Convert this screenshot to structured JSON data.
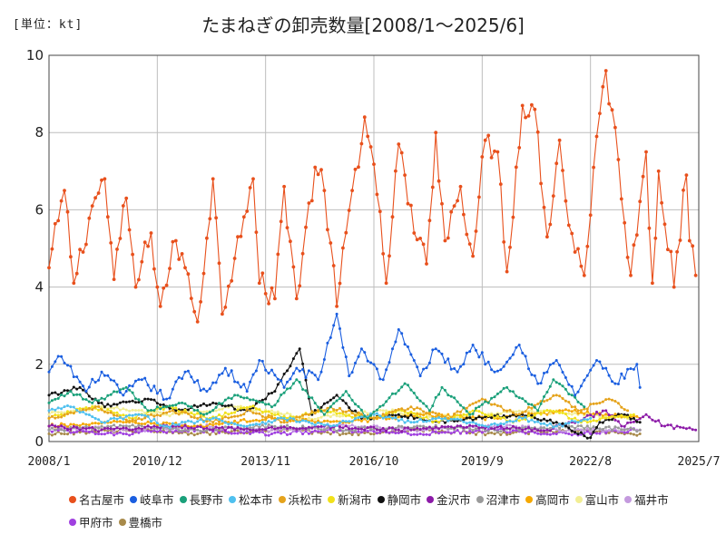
{
  "unit_label": "[単位：kt]",
  "chart_data": {
    "type": "line",
    "title": "たまねぎの卸売数量[2008/1～2025/6]",
    "xlabel": "",
    "ylabel": "",
    "ylim": [
      0,
      10
    ],
    "yticks": [
      0,
      2,
      4,
      6,
      8,
      10
    ],
    "x_start": "2008/1",
    "x_end": "2025/7",
    "xtick_labels": [
      "2008/1",
      "2010/12",
      "2013/11",
      "2016/10",
      "2019/9",
      "2022/8",
      "2025/7"
    ],
    "grid": true,
    "legend_position": "bottom",
    "series": [
      {
        "name": "名古屋市",
        "color": "#e8501c",
        "end": "2025/6",
        "points": [
          [
            "2008/1",
            4.5
          ],
          [
            "2008/6",
            6.5
          ],
          [
            "2008/9",
            4.1
          ],
          [
            "2009/3",
            6.1
          ],
          [
            "2009/7",
            6.8
          ],
          [
            "2009/10",
            4.2
          ],
          [
            "2010/2",
            6.3
          ],
          [
            "2010/5",
            4.0
          ],
          [
            "2010/10",
            5.4
          ],
          [
            "2011/1",
            3.5
          ],
          [
            "2011/6",
            5.2
          ],
          [
            "2011/9",
            4.5
          ],
          [
            "2012/1",
            3.1
          ],
          [
            "2012/6",
            6.8
          ],
          [
            "2012/9",
            3.3
          ],
          [
            "2013/2",
            5.3
          ],
          [
            "2013/7",
            6.8
          ],
          [
            "2013/9",
            4.1
          ],
          [
            "2014/2",
            3.7
          ],
          [
            "2014/5",
            6.6
          ],
          [
            "2014/9",
            3.7
          ],
          [
            "2015/3",
            7.1
          ],
          [
            "2015/6",
            6.5
          ],
          [
            "2015/10",
            3.5
          ],
          [
            "2016/3",
            6.5
          ],
          [
            "2016/7",
            8.4
          ],
          [
            "2016/11",
            6.4
          ],
          [
            "2017/2",
            4.1
          ],
          [
            "2017/6",
            7.7
          ],
          [
            "2017/11",
            5.4
          ],
          [
            "2018/3",
            4.6
          ],
          [
            "2018/6",
            8.0
          ],
          [
            "2018/9",
            5.2
          ],
          [
            "2019/2",
            6.6
          ],
          [
            "2019/6",
            4.8
          ],
          [
            "2019/10",
            7.8
          ],
          [
            "2020/2",
            7.5
          ],
          [
            "2020/5",
            4.4
          ],
          [
            "2020/10",
            8.7
          ],
          [
            "2021/2",
            8.6
          ],
          [
            "2021/6",
            5.3
          ],
          [
            "2021/10",
            7.8
          ],
          [
            "2022/1",
            5.6
          ],
          [
            "2022/6",
            4.3
          ],
          [
            "2022/10",
            7.9
          ],
          [
            "2023/1",
            9.6
          ],
          [
            "2023/5",
            7.3
          ],
          [
            "2023/9",
            4.3
          ],
          [
            "2024/2",
            7.5
          ],
          [
            "2024/4",
            4.1
          ],
          [
            "2024/6",
            7.0
          ],
          [
            "2024/11",
            4.0
          ],
          [
            "2025/3",
            6.9
          ],
          [
            "2025/4",
            5.2
          ],
          [
            "2025/6",
            4.3
          ]
        ]
      },
      {
        "name": "岐阜市",
        "color": "#1a5ee0",
        "end": "2023/12",
        "points": [
          [
            "2008/1",
            1.8
          ],
          [
            "2008/5",
            2.2
          ],
          [
            "2009/1",
            1.3
          ],
          [
            "2009/6",
            1.8
          ],
          [
            "2010/1",
            1.2
          ],
          [
            "2010/7",
            1.6
          ],
          [
            "2011/3",
            1.1
          ],
          [
            "2011/9",
            1.8
          ],
          [
            "2012/4",
            1.3
          ],
          [
            "2012/10",
            1.9
          ],
          [
            "2013/5",
            1.3
          ],
          [
            "2013/9",
            2.1
          ],
          [
            "2014/5",
            1.4
          ],
          [
            "2014/9",
            1.9
          ],
          [
            "2015/4",
            1.6
          ],
          [
            "2015/10",
            3.3
          ],
          [
            "2016/2",
            1.7
          ],
          [
            "2016/6",
            2.4
          ],
          [
            "2017/1",
            1.6
          ],
          [
            "2017/6",
            2.9
          ],
          [
            "2018/1",
            1.7
          ],
          [
            "2018/6",
            2.4
          ],
          [
            "2019/1",
            1.8
          ],
          [
            "2019/6",
            2.5
          ],
          [
            "2020/1",
            1.8
          ],
          [
            "2020/9",
            2.5
          ],
          [
            "2021/3",
            1.5
          ],
          [
            "2021/9",
            2.1
          ],
          [
            "2022/3",
            1.2
          ],
          [
            "2022/10",
            2.1
          ],
          [
            "2023/4",
            1.5
          ],
          [
            "2023/11",
            2.0
          ],
          [
            "2023/12",
            1.4
          ]
        ]
      },
      {
        "name": "長野市",
        "color": "#1aa07a",
        "end": "2022/6",
        "points": [
          [
            "2008/1",
            1.0
          ],
          [
            "2008/8",
            1.3
          ],
          [
            "2009/3",
            1.0
          ],
          [
            "2010/2",
            1.4
          ],
          [
            "2010/9",
            0.8
          ],
          [
            "2011/8",
            1.0
          ],
          [
            "2012/3",
            0.7
          ],
          [
            "2013/1",
            1.2
          ],
          [
            "2014/1",
            0.9
          ],
          [
            "2014/9",
            1.6
          ],
          [
            "2015/6",
            0.7
          ],
          [
            "2016/1",
            1.3
          ],
          [
            "2016/8",
            0.6
          ],
          [
            "2017/8",
            1.5
          ],
          [
            "2018/4",
            0.8
          ],
          [
            "2018/8",
            1.4
          ],
          [
            "2019/5",
            0.7
          ],
          [
            "2020/5",
            1.4
          ],
          [
            "2021/3",
            0.8
          ],
          [
            "2021/8",
            1.6
          ],
          [
            "2022/6",
            0.9
          ]
        ]
      },
      {
        "name": "松本市",
        "color": "#4fc0ef",
        "end": "2022/8",
        "points": [
          [
            "2008/1",
            0.8
          ],
          [
            "2008/8",
            0.9
          ],
          [
            "2009/6",
            0.5
          ],
          [
            "2010/6",
            0.7
          ],
          [
            "2011/3",
            0.4
          ],
          [
            "2012/6",
            0.6
          ],
          [
            "2013/4",
            0.4
          ],
          [
            "2014/5",
            0.6
          ],
          [
            "2015/8",
            0.4
          ],
          [
            "2016/10",
            0.7
          ],
          [
            "2017/10",
            0.5
          ],
          [
            "2018/9",
            0.6
          ],
          [
            "2019/10",
            0.4
          ],
          [
            "2020/10",
            0.6
          ],
          [
            "2021/9",
            0.4
          ],
          [
            "2022/8",
            0.6
          ]
        ]
      },
      {
        "name": "浜松市",
        "color": "#e5a31c",
        "end": "2023/8",
        "points": [
          [
            "2008/1",
            0.6
          ],
          [
            "2009/4",
            0.9
          ],
          [
            "2010/3",
            0.5
          ],
          [
            "2011/5",
            0.8
          ],
          [
            "2012/6",
            0.5
          ],
          [
            "2013/6",
            0.8
          ],
          [
            "2014/5",
            0.5
          ],
          [
            "2015/8",
            0.9
          ],
          [
            "2016/10",
            0.6
          ],
          [
            "2017/10",
            0.9
          ],
          [
            "2018/10",
            0.6
          ],
          [
            "2019/9",
            1.1
          ],
          [
            "2020/8",
            0.7
          ],
          [
            "2021/9",
            1.2
          ],
          [
            "2022/4",
            0.8
          ],
          [
            "2023/2",
            1.1
          ],
          [
            "2023/8",
            0.8
          ]
        ]
      },
      {
        "name": "新潟市",
        "color": "#f1e11a",
        "end": "2023/10",
        "points": [
          [
            "2008/1",
            0.6
          ],
          [
            "2009/3",
            0.9
          ],
          [
            "2010/4",
            0.6
          ],
          [
            "2011/3",
            0.9
          ],
          [
            "2012/5",
            0.6
          ],
          [
            "2013/6",
            0.9
          ],
          [
            "2014/6",
            0.6
          ],
          [
            "2015/6",
            0.8
          ],
          [
            "2016/8",
            0.6
          ],
          [
            "2017/7",
            0.8
          ],
          [
            "2018/7",
            0.5
          ],
          [
            "2019/7",
            0.8
          ],
          [
            "2020/7",
            0.5
          ],
          [
            "2021/7",
            0.8
          ],
          [
            "2022/7",
            0.5
          ],
          [
            "2023/10",
            0.7
          ]
        ]
      },
      {
        "name": "静岡市",
        "color": "#111111",
        "end": "2023/12",
        "points": [
          [
            "2008/1",
            1.2
          ],
          [
            "2008/11",
            1.4
          ],
          [
            "2009/7",
            0.9
          ],
          [
            "2010/9",
            1.1
          ],
          [
            "2011/6",
            0.8
          ],
          [
            "2012/6",
            1.0
          ],
          [
            "2013/5",
            0.8
          ],
          [
            "2014/2",
            1.3
          ],
          [
            "2014/10",
            2.4
          ],
          [
            "2015/2",
            0.7
          ],
          [
            "2015/10",
            1.2
          ],
          [
            "2016/6",
            0.6
          ],
          [
            "2017/6",
            0.7
          ],
          [
            "2018/7",
            0.5
          ],
          [
            "2019/7",
            0.6
          ],
          [
            "2020/10",
            0.7
          ],
          [
            "2021/9",
            0.5
          ],
          [
            "2022/8",
            0.1
          ],
          [
            "2022/11",
            0.5
          ],
          [
            "2023/6",
            0.7
          ],
          [
            "2023/12",
            0.5
          ]
        ]
      },
      {
        "name": "金沢市",
        "color": "#8c1aa8",
        "end": "2025/6",
        "points": [
          [
            "2008/1",
            0.4
          ],
          [
            "2009/6",
            0.3
          ],
          [
            "2011/6",
            0.4
          ],
          [
            "2013/6",
            0.3
          ],
          [
            "2015/6",
            0.4
          ],
          [
            "2017/6",
            0.3
          ],
          [
            "2019/6",
            0.4
          ],
          [
            "2021/6",
            0.3
          ],
          [
            "2022/6",
            0.6
          ],
          [
            "2023/1",
            0.8
          ],
          [
            "2023/6",
            0.4
          ],
          [
            "2024/2",
            0.7
          ],
          [
            "2024/8",
            0.4
          ],
          [
            "2025/6",
            0.3
          ]
        ]
      },
      {
        "name": "沼津市",
        "color": "#9a9a9a",
        "end": "2023/12",
        "points": [
          [
            "2008/1",
            0.3
          ],
          [
            "2010/1",
            0.4
          ],
          [
            "2012/1",
            0.3
          ],
          [
            "2014/1",
            0.4
          ],
          [
            "2016/1",
            0.3
          ],
          [
            "2018/1",
            0.4
          ],
          [
            "2020/1",
            0.3
          ],
          [
            "2022/1",
            0.4
          ],
          [
            "2023/12",
            0.3
          ]
        ]
      },
      {
        "name": "高岡市",
        "color": "#f5a800",
        "end": "2023/12",
        "points": [
          [
            "2008/1",
            0.4
          ],
          [
            "2010/1",
            0.5
          ],
          [
            "2012/1",
            0.4
          ],
          [
            "2014/1",
            0.6
          ],
          [
            "2016/1",
            0.5
          ],
          [
            "2018/1",
            0.7
          ],
          [
            "2020/1",
            0.6
          ],
          [
            "2022/1",
            0.8
          ],
          [
            "2023/12",
            0.6
          ]
        ]
      },
      {
        "name": "富山市",
        "color": "#f2ee94",
        "end": "2023/10",
        "points": [
          [
            "2008/1",
            0.7
          ],
          [
            "2009/5",
            0.9
          ],
          [
            "2011/3",
            0.7
          ],
          [
            "2013/1",
            0.9
          ],
          [
            "2015/1",
            0.6
          ],
          [
            "2017/1",
            0.8
          ],
          [
            "2019/1",
            0.6
          ],
          [
            "2021/1",
            0.8
          ],
          [
            "2023/10",
            0.6
          ]
        ]
      },
      {
        "name": "福井市",
        "color": "#c49ade",
        "end": "2023/12",
        "points": [
          [
            "2008/1",
            0.4
          ],
          [
            "2010/1",
            0.3
          ],
          [
            "2012/1",
            0.4
          ],
          [
            "2014/1",
            0.3
          ],
          [
            "2016/1",
            0.4
          ],
          [
            "2018/1",
            0.3
          ],
          [
            "2020/1",
            0.4
          ],
          [
            "2022/1",
            0.3
          ],
          [
            "2023/12",
            0.3
          ]
        ]
      },
      {
        "name": "甲府市",
        "color": "#a040e0",
        "end": "2023/12",
        "points": [
          [
            "2008/1",
            0.3
          ],
          [
            "2010/1",
            0.2
          ],
          [
            "2012/1",
            0.3
          ],
          [
            "2014/1",
            0.2
          ],
          [
            "2016/1",
            0.3
          ],
          [
            "2018/1",
            0.2
          ],
          [
            "2020/1",
            0.3
          ],
          [
            "2022/1",
            0.2
          ],
          [
            "2023/12",
            0.3
          ]
        ]
      },
      {
        "name": "豊橋市",
        "color": "#a88a4a",
        "end": "2023/12",
        "points": [
          [
            "2008/1",
            0.2
          ],
          [
            "2010/1",
            0.3
          ],
          [
            "2012/1",
            0.2
          ],
          [
            "2014/1",
            0.3
          ],
          [
            "2016/1",
            0.2
          ],
          [
            "2018/1",
            0.3
          ],
          [
            "2020/1",
            0.2
          ],
          [
            "2022/1",
            0.3
          ],
          [
            "2023/12",
            0.2
          ]
        ]
      }
    ]
  }
}
